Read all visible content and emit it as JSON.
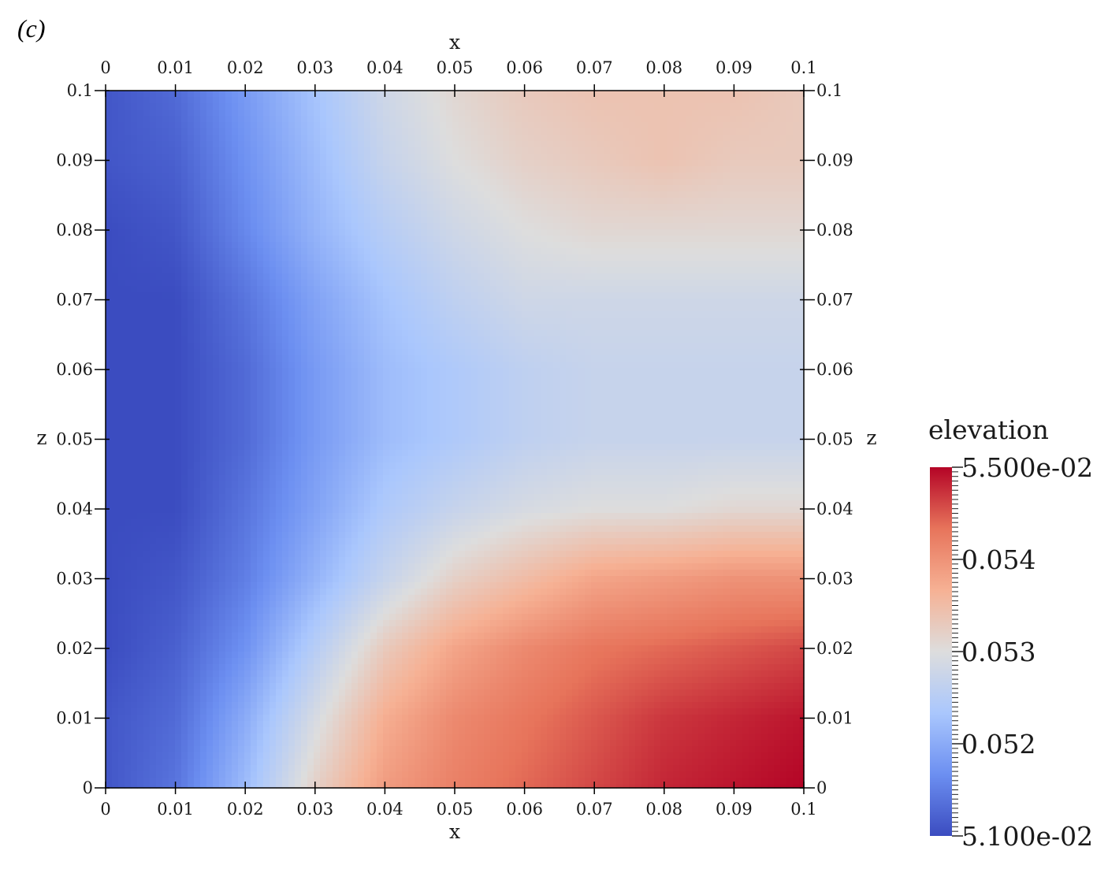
{
  "panel_label": "(c)",
  "chart_data": {
    "type": "heatmap",
    "title": "",
    "xlabel": "x",
    "ylabel": "z",
    "xlim": [
      0,
      0.1
    ],
    "ylim": [
      0,
      0.1
    ],
    "x_ticks": [
      "0",
      "0.01",
      "0.02",
      "0.03",
      "0.04",
      "0.05",
      "0.06",
      "0.07",
      "0.08",
      "0.09",
      "0.1"
    ],
    "y_ticks": [
      "0",
      "0.01",
      "0.02",
      "0.03",
      "0.04",
      "0.05",
      "0.06",
      "0.07",
      "0.08",
      "0.09",
      "0.1"
    ],
    "x_tick_values": [
      0,
      0.01,
      0.02,
      0.03,
      0.04,
      0.05,
      0.06,
      0.07,
      0.08,
      0.09,
      0.1
    ],
    "y_tick_values": [
      0,
      0.01,
      0.02,
      0.03,
      0.04,
      0.05,
      0.06,
      0.07,
      0.08,
      0.09,
      0.1
    ],
    "colorbar": {
      "title": "elevation",
      "range": [
        0.051,
        0.055
      ],
      "labels": [
        {
          "text": "5.100e-02",
          "value": 0.051
        },
        {
          "text": "0.052",
          "value": 0.052
        },
        {
          "text": "0.053",
          "value": 0.053
        },
        {
          "text": "0.054",
          "value": 0.054
        },
        {
          "text": "5.500e-02",
          "value": 0.055
        }
      ],
      "colormap": "coolwarm",
      "stops": [
        "#3b4cc0",
        "#6c8ff1",
        "#aac7fd",
        "#dddddd",
        "#f6b194",
        "#e7745b",
        "#b40426"
      ]
    },
    "field_grid": {
      "x": [
        0,
        0.01,
        0.02,
        0.03,
        0.04,
        0.05,
        0.06,
        0.07,
        0.08,
        0.09,
        0.1
      ],
      "z_rows_top_to_bottom": [
        0.1,
        0.09,
        0.08,
        0.07,
        0.06,
        0.05,
        0.04,
        0.03,
        0.02,
        0.01,
        0
      ],
      "values": [
        [
          0.0511,
          0.0513,
          0.0518,
          0.0523,
          0.0528,
          0.0531,
          0.0533,
          0.0534,
          0.0534,
          0.0534,
          0.0533
        ],
        [
          0.0511,
          0.0512,
          0.0517,
          0.0522,
          0.0527,
          0.053,
          0.0532,
          0.0533,
          0.0534,
          0.0533,
          0.0533
        ],
        [
          0.051,
          0.0511,
          0.0516,
          0.0521,
          0.0525,
          0.0528,
          0.053,
          0.0531,
          0.0531,
          0.0531,
          0.0531
        ],
        [
          0.051,
          0.051,
          0.0514,
          0.0519,
          0.0523,
          0.0526,
          0.0528,
          0.0528,
          0.0528,
          0.0528,
          0.0528
        ],
        [
          0.051,
          0.051,
          0.0513,
          0.0518,
          0.0522,
          0.0524,
          0.0526,
          0.0527,
          0.0527,
          0.0527,
          0.0527
        ],
        [
          0.051,
          0.051,
          0.0513,
          0.0518,
          0.0522,
          0.0524,
          0.0526,
          0.0527,
          0.0527,
          0.0527,
          0.0527
        ],
        [
          0.051,
          0.051,
          0.0514,
          0.0519,
          0.0524,
          0.0527,
          0.0529,
          0.053,
          0.053,
          0.0531,
          0.0531
        ],
        [
          0.051,
          0.0511,
          0.0515,
          0.0521,
          0.0527,
          0.0532,
          0.0535,
          0.0538,
          0.0539,
          0.054,
          0.054
        ],
        [
          0.051,
          0.0512,
          0.0517,
          0.0525,
          0.0533,
          0.0538,
          0.0541,
          0.0543,
          0.0544,
          0.0545,
          0.0546
        ],
        [
          0.0511,
          0.0513,
          0.052,
          0.0529,
          0.0537,
          0.0541,
          0.0543,
          0.0545,
          0.0547,
          0.0548,
          0.0549
        ],
        [
          0.0511,
          0.0514,
          0.0522,
          0.0532,
          0.0539,
          0.0542,
          0.0544,
          0.0546,
          0.0548,
          0.0549,
          0.055
        ]
      ]
    }
  }
}
